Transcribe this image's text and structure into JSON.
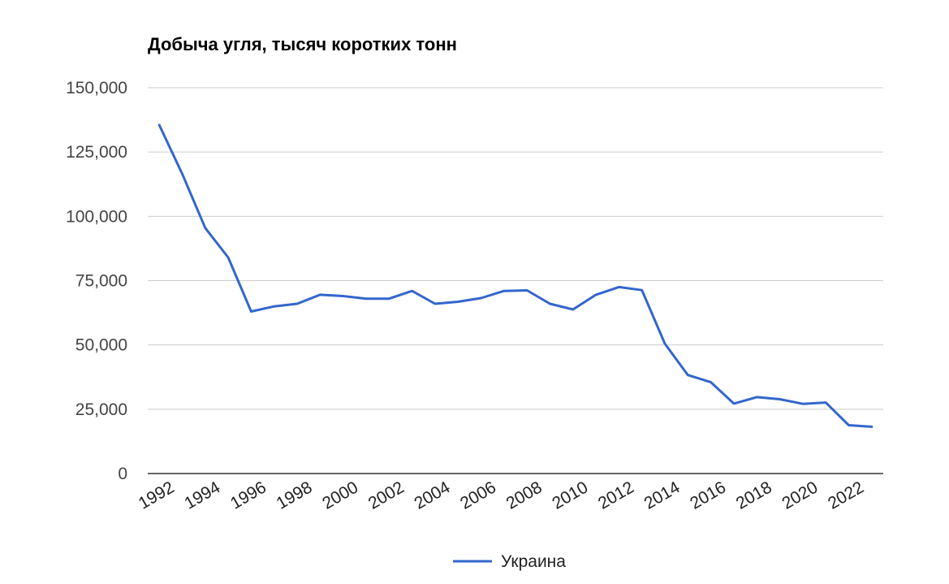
{
  "chart_data": {
    "type": "line",
    "title": "Добыча угля, тысяч коротких тонн",
    "xlabel": "",
    "ylabel": "",
    "ylim": [
      0,
      150000
    ],
    "yticks": [
      0,
      25000,
      50000,
      75000,
      100000,
      125000,
      150000
    ],
    "ytick_labels": [
      "0",
      "25,000",
      "50,000",
      "75,000",
      "100,000",
      "125,000",
      "150,000"
    ],
    "xticks": [
      "1992",
      "1994",
      "1996",
      "1998",
      "2000",
      "2002",
      "2004",
      "2006",
      "2008",
      "2010",
      "2012",
      "2014",
      "2016",
      "2018",
      "2020",
      "2022"
    ],
    "grid": true,
    "legend_position": "bottom",
    "x": [
      1992,
      1993,
      1994,
      1995,
      1996,
      1997,
      1998,
      1999,
      2000,
      2001,
      2002,
      2003,
      2004,
      2005,
      2006,
      2007,
      2008,
      2009,
      2010,
      2011,
      2012,
      2013,
      2014,
      2015,
      2016,
      2017,
      2018,
      2019,
      2020,
      2021,
      2022,
      2023
    ],
    "series": [
      {
        "name": "Украина",
        "color": "#3366cc",
        "values": [
          135500,
          116500,
          95500,
          84000,
          63000,
          65000,
          66000,
          69500,
          69000,
          68000,
          68000,
          71000,
          66000,
          66800,
          68200,
          71000,
          71200,
          66000,
          63800,
          69500,
          72500,
          71300,
          50500,
          38300,
          35500,
          27200,
          29700,
          28900,
          27100,
          27600,
          18800,
          18200
        ]
      }
    ]
  }
}
